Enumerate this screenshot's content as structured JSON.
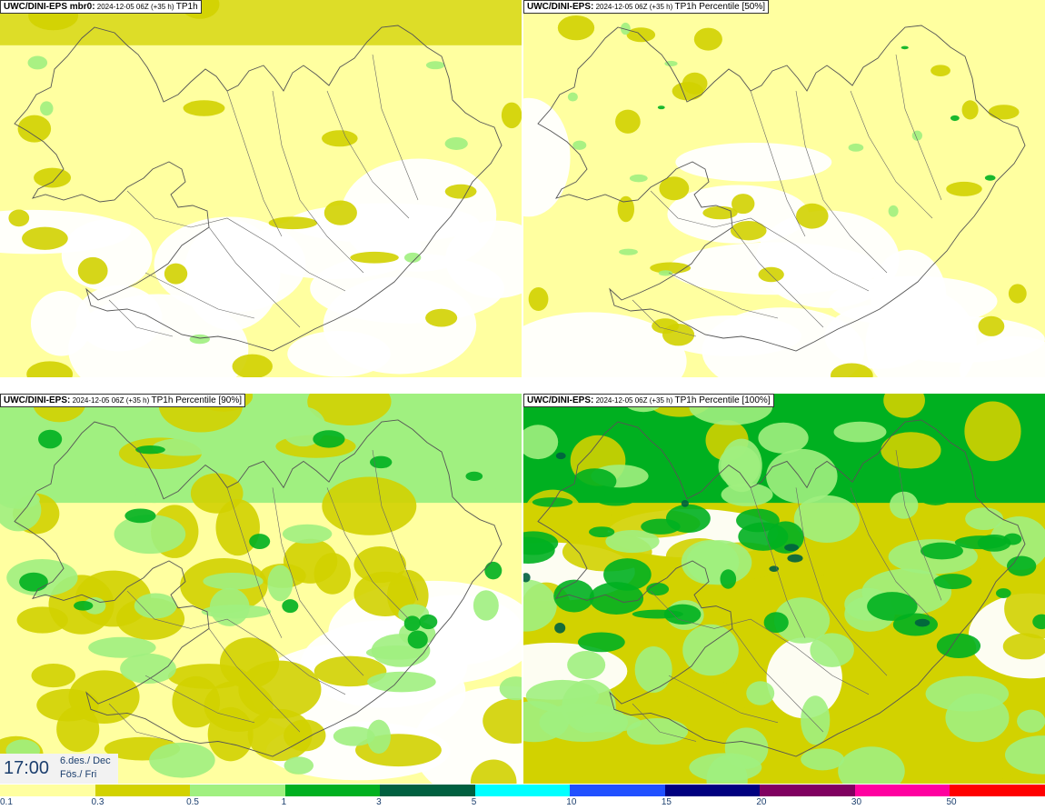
{
  "panels": [
    {
      "title_bold": "UWC/DINI-EPS mbr0:",
      "title_small": " 2024-12-05 06Z (+35 h) ",
      "title_tail": "TP1h",
      "intensity": 0
    },
    {
      "title_bold": "UWC/DINI-EPS:",
      "title_small": " 2024-12-05 06Z (+35 h) ",
      "title_tail": "TP1h Percentile [50%]",
      "intensity": 1
    },
    {
      "title_bold": "UWC/DINI-EPS:",
      "title_small": " 2024-12-05 06Z (+35 h) ",
      "title_tail": "TP1h Percentile [90%]",
      "intensity": 2
    },
    {
      "title_bold": "UWC/DINI-EPS:",
      "title_small": " 2024-12-05 06Z (+35 h) ",
      "title_tail": "TP1h Percentile [100%]",
      "intensity": 3
    }
  ],
  "timebox": {
    "time": "17:00",
    "date_line1": "6.des./ Dec",
    "date_line2": "Fös./ Fri"
  },
  "legend": {
    "colors": [
      "#ffffa0",
      "#d2d200",
      "#a0f080",
      "#00b020",
      "#006040",
      "#00ffff",
      "#2050ff",
      "#000080",
      "#800060",
      "#ff00a0",
      "#ff0000"
    ],
    "ticks": [
      "0.1",
      "0.3",
      "0.5",
      "1",
      "3",
      "5",
      "10",
      "15",
      "20",
      "30",
      "50"
    ]
  }
}
